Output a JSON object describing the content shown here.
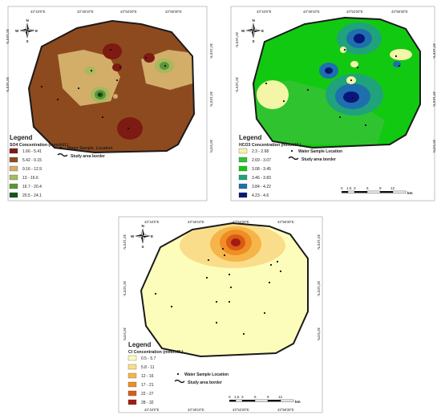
{
  "colors": {
    "border": "#1a1a1a",
    "so4": [
      "#7d1a12",
      "#8e4a1f",
      "#d3ae69",
      "#a8b85e",
      "#5b963a",
      "#1b5318"
    ],
    "hco3": [
      "#f4f5a6",
      "#2fc42f",
      "#12c912",
      "#1fa37b",
      "#1f6fae",
      "#0a167a"
    ],
    "cl": [
      "#fdfdbb",
      "#fadd8a",
      "#f6b54a",
      "#ef8e24",
      "#d95b14",
      "#a01c13"
    ]
  },
  "common": {
    "compass": {
      "n": "N",
      "s": "S",
      "e": "E",
      "w": "W"
    },
    "top_coords": [
      "43°43'0\"E",
      "43°48'10\"E",
      "43°53'20\"E",
      "43°58'30\"E"
    ],
    "side_coords_left": [
      "36°15'0\"N",
      "36°10'0\"N",
      "36°5'0\"N"
    ],
    "scale_ticks": [
      "0",
      "1.5",
      "3",
      "6",
      "9",
      "12"
    ],
    "scale_unit": "km"
  },
  "panels": [
    {
      "id": "so4",
      "legend_title": "Legend",
      "concentration_title": "SO4 Concentration (mmohl/L)",
      "classes": [
        "1.66 - 5.41",
        "5.42 - 9.15",
        "9.16 - 12.9",
        "13 - 16.6",
        "16.7 - 20.4",
        "20.5 - 24.1"
      ],
      "sample_label": "Water Sample_Location",
      "border_label": "Study area border"
    },
    {
      "id": "hco3",
      "legend_title": "Legend",
      "concentration_title": "HCO3 Concentration (mmohl/L)",
      "classes": [
        "2.3 - 2.68",
        "2.69 - 3.07",
        "3.08 - 3.45",
        "3.46 - 3.83",
        "3.84 - 4.22",
        "4.23 - 4.6"
      ],
      "sample_label": "Water Sample Location",
      "border_label": "Study area border"
    },
    {
      "id": "cl",
      "legend_title": "Legend",
      "concentration_title": "Cl Concentration (mmohl/L)",
      "classes": [
        "0.5 - 5.7",
        "5.8 - 11",
        "12 - 16",
        "17 - 21",
        "22 - 27",
        "28 - 32"
      ],
      "sample_label": "Water Sample Location",
      "border_label": "Study area border"
    }
  ]
}
